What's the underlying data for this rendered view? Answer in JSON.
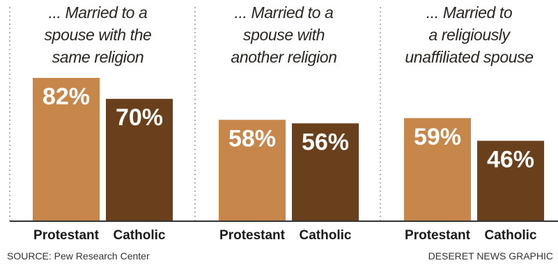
{
  "chart_data": {
    "type": "bar",
    "panels": [
      {
        "title": [
          "... Married to a",
          "spouse with the",
          "same religion"
        ],
        "categories": [
          "Protestant",
          "Catholic"
        ],
        "values": [
          82,
          70
        ],
        "labels": [
          "82%",
          "70%"
        ]
      },
      {
        "title": [
          "... Married to a",
          "spouse with",
          "another religion"
        ],
        "categories": [
          "Protestant",
          "Catholic"
        ],
        "values": [
          58,
          56
        ],
        "labels": [
          "58%",
          "56%"
        ]
      },
      {
        "title": [
          "... Married to",
          "a religiously",
          "unaffiliated spouse"
        ],
        "categories": [
          "Protestant",
          "Catholic"
        ],
        "values": [
          59,
          46
        ],
        "labels": [
          "59%",
          "46%"
        ]
      }
    ],
    "colors": {
      "Protestant": "#c8874a",
      "Catholic": "#6a3f1c"
    },
    "ylim": [
      0,
      82
    ],
    "grid": false
  },
  "footer": {
    "source": "SOURCE: Pew Research Center",
    "credit": "DESERET NEWS GRAPHIC"
  }
}
